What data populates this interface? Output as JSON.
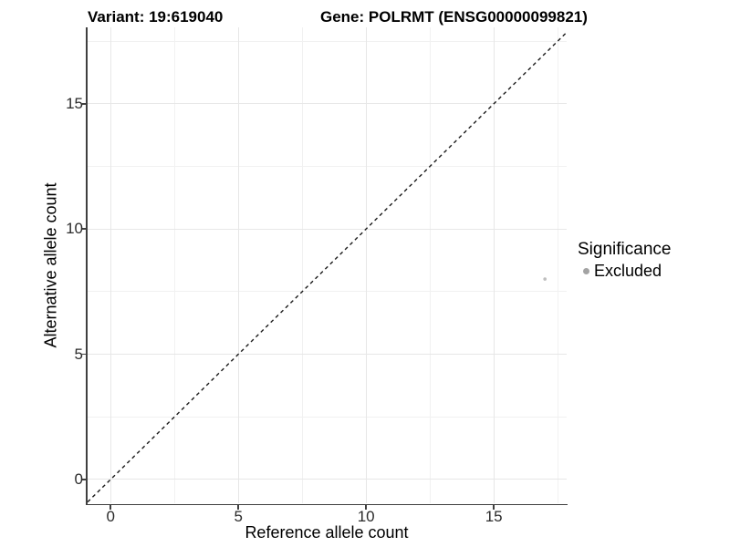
{
  "chart_data": {
    "type": "scatter",
    "titles": {
      "left": "Variant: 19:619040",
      "right": "Gene: POLRMT (ENSG00000099821)"
    },
    "xlabel": "Reference allele count",
    "ylabel": "Alternative allele count",
    "xlim": [
      -0.9,
      17.85
    ],
    "ylim": [
      -0.95,
      18.05
    ],
    "x_major_ticks": [
      0,
      5,
      10,
      15
    ],
    "y_major_ticks": [
      0,
      5,
      10,
      15
    ],
    "x_minor_ticks": [
      2.5,
      7.5,
      12.5,
      17.5
    ],
    "y_minor_ticks": [
      2.5,
      7.5,
      12.5,
      17.5
    ],
    "grid": "major+minor",
    "reference_line": {
      "type": "identity",
      "equation": "y = x",
      "style": "dashed",
      "color": "#1a1a1a"
    },
    "series": [
      {
        "name": "Excluded",
        "color": "#bfbfbf",
        "point_radius": 1.8,
        "points": [
          {
            "x": 17,
            "y": 8
          }
        ]
      }
    ],
    "legend": {
      "title": "Significance",
      "position": "right",
      "items": [
        {
          "label": "Excluded",
          "color": "#a3a3a3"
        }
      ]
    }
  }
}
